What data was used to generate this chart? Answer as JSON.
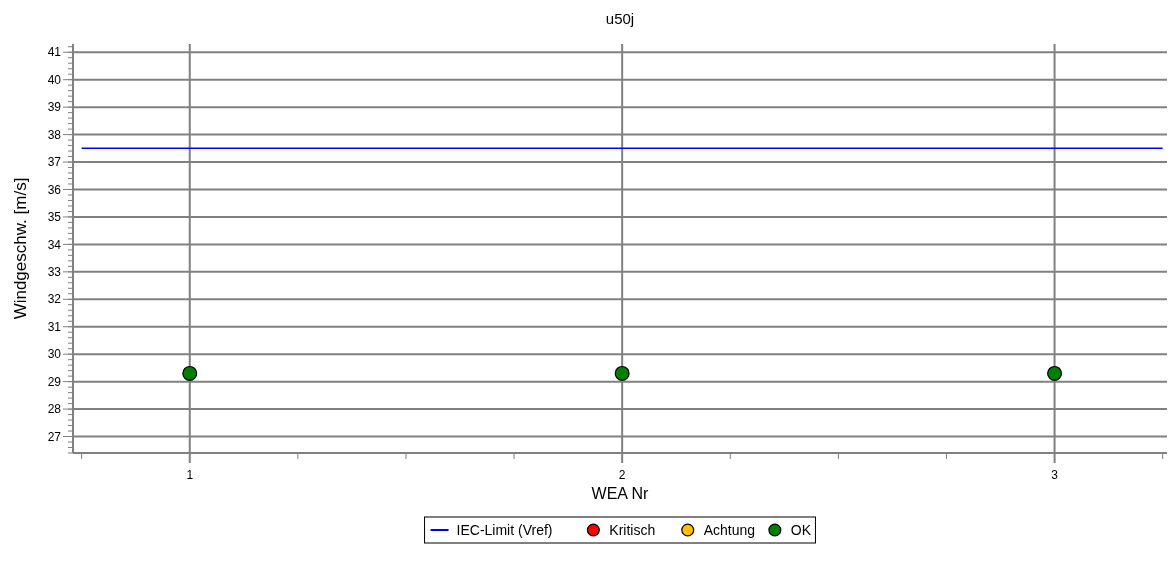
{
  "chart_data": {
    "type": "scatter",
    "title": "u50j",
    "xlabel": "WEA Nr",
    "ylabel": "Windgeschw. [m/s]",
    "xlim": [
      0.73,
      3.26
    ],
    "xticks": [
      {
        "value": 0.75,
        "label": null
      },
      1,
      {
        "value": 1.25,
        "label": null
      },
      {
        "value": 1.5,
        "label": null
      },
      {
        "value": 1.75,
        "label": null
      },
      2,
      {
        "value": 2.25,
        "label": null
      },
      {
        "value": 2.5,
        "label": null
      },
      {
        "value": 2.75,
        "label": null
      },
      3,
      {
        "value": 3.25,
        "label": null
      }
    ],
    "ylim": [
      26.4,
      41.3
    ],
    "yticks": [
      27,
      28,
      29,
      30,
      31,
      32,
      33,
      34,
      35,
      36,
      37,
      38,
      39,
      40,
      41
    ],
    "grid": true,
    "legend": "bottom",
    "marker": "circle",
    "series": [
      {
        "name": "IEC-Limit (Vref)",
        "type": "line",
        "color": "#0000ff",
        "marker": "none",
        "x": [
          0.75,
          3.25
        ],
        "values": [
          37.5,
          37.5
        ]
      },
      {
        "name": "Kritisch",
        "color": "#ff0000"
      },
      {
        "name": "Achtung",
        "color": "#ffc000"
      },
      {
        "name": "OK",
        "color": "#008000",
        "x": [
          1,
          2,
          3
        ],
        "values": [
          29.3,
          29.3,
          29.3
        ]
      }
    ]
  }
}
